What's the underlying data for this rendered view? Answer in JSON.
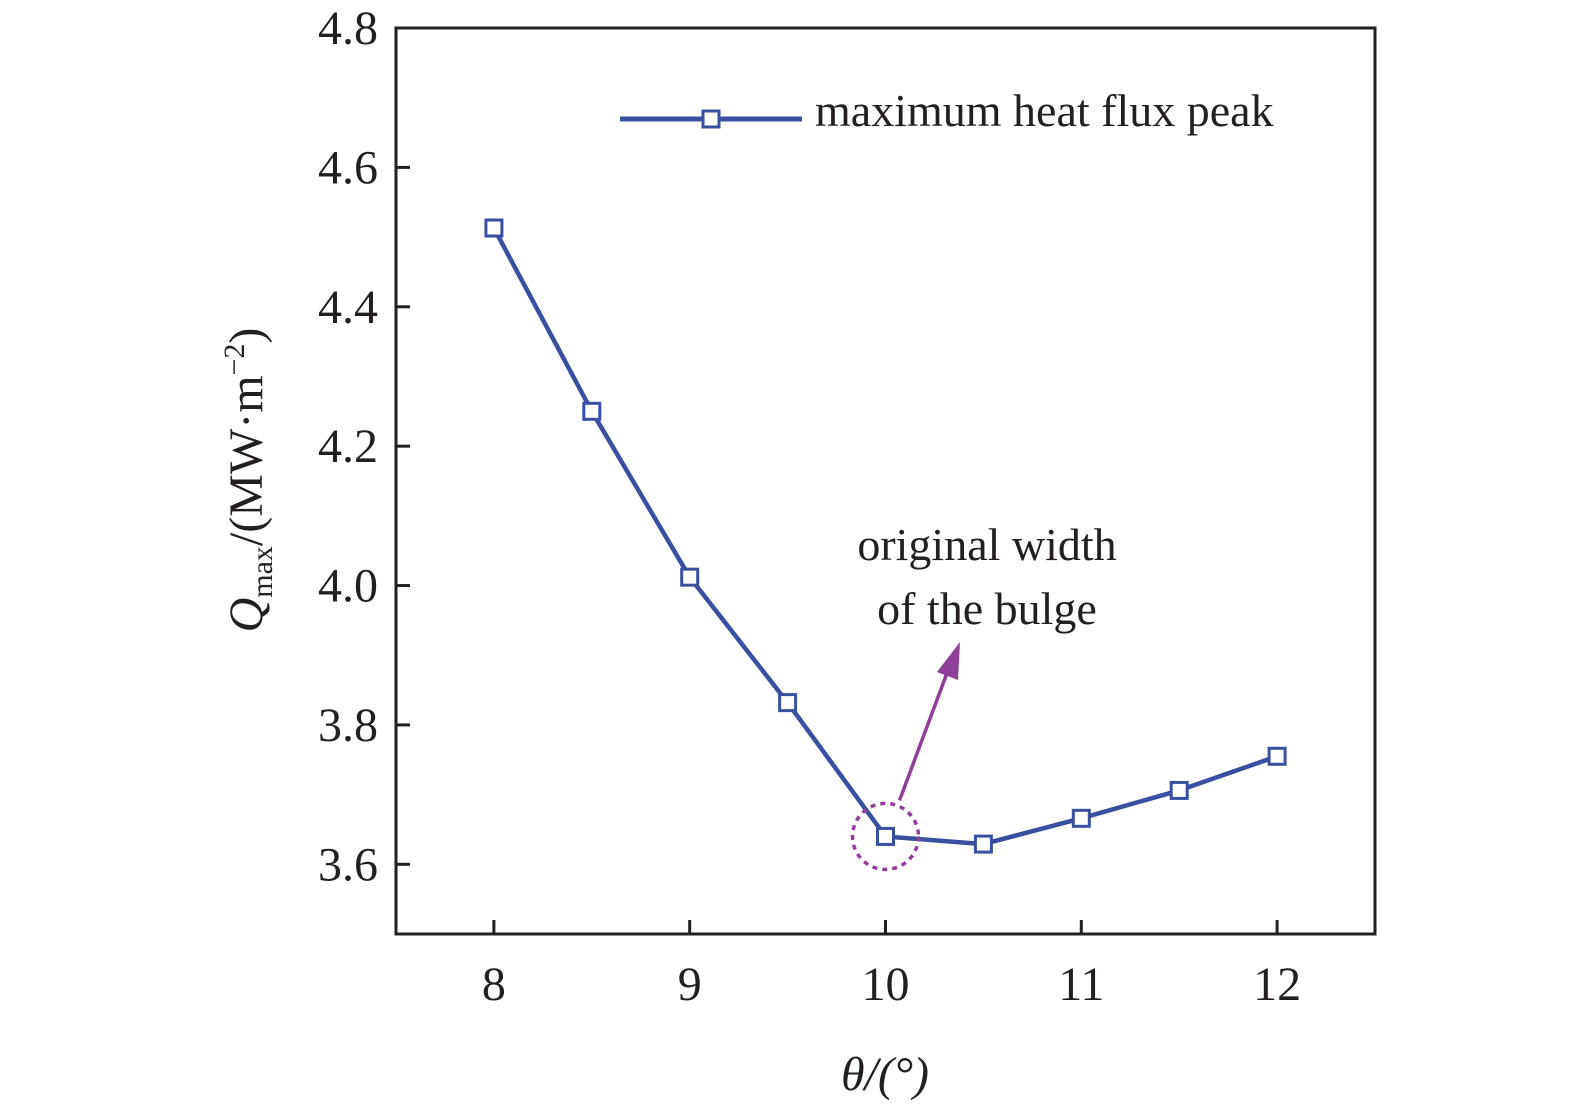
{
  "chart_data": {
    "type": "line",
    "title": "",
    "xlabel": "θ/(°)",
    "ylabel": {
      "main": "Q",
      "subscript": "max",
      "unit_prefix": "/(MW·m",
      "unit_exp": "−2",
      "unit_suffix": ")"
    },
    "xlim": [
      7.5,
      12.5
    ],
    "ylim": [
      3.5,
      4.8
    ],
    "xticks": [
      8,
      9,
      10,
      11,
      12
    ],
    "xtick_labels": [
      "8",
      "9",
      "10",
      "11",
      "12"
    ],
    "yticks": [
      3.6,
      3.8,
      4.0,
      4.2,
      4.4,
      4.6,
      4.8
    ],
    "ytick_labels": [
      "3.6",
      "3.8",
      "4.0",
      "4.2",
      "4.4",
      "4.6",
      "4.8"
    ],
    "grid": false,
    "legend_position": "top-right",
    "series": [
      {
        "name": "maximum heat flux peak",
        "color": "#3a4fa0",
        "marker": "open-square",
        "x": [
          8,
          8.5,
          9,
          9.5,
          10,
          10.5,
          11,
          11.5,
          12
        ],
        "y": [
          4.513,
          4.25,
          4.012,
          3.832,
          3.64,
          3.629,
          3.666,
          3.706,
          3.755
        ]
      }
    ],
    "annotation": {
      "lines": [
        "original width",
        "of the bulge"
      ],
      "color": "#8e3f98",
      "target_x": 10,
      "target_y": 3.64
    }
  }
}
